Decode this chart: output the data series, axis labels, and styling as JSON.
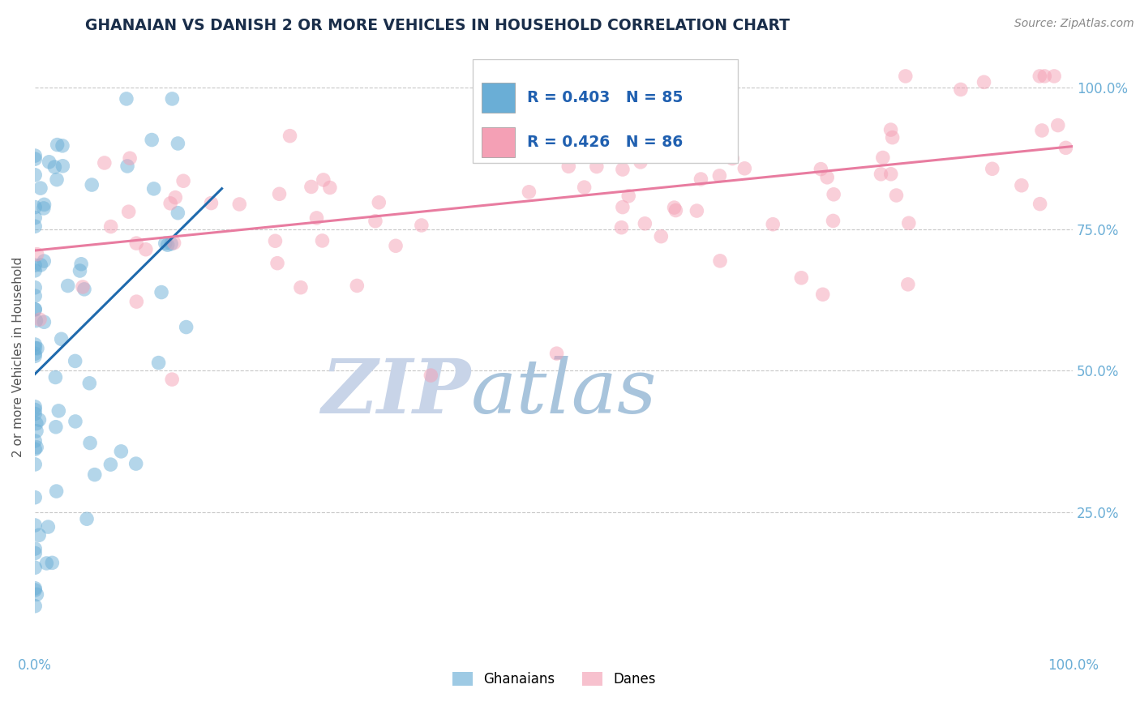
{
  "title": "GHANAIAN VS DANISH 2 OR MORE VEHICLES IN HOUSEHOLD CORRELATION CHART",
  "source": "Source: ZipAtlas.com",
  "ylabel": "2 or more Vehicles in Household",
  "xlim": [
    0.0,
    1.0
  ],
  "ylim": [
    0.0,
    1.05
  ],
  "ghanaian_color": "#6aaed6",
  "danish_color": "#f4a0b5",
  "ghanaian_trendline_color": "#1f6aad",
  "danish_trendline_color": "#e87ca0",
  "ghanaian_R": 0.403,
  "danish_R": 0.426,
  "ghanaian_N": 85,
  "danish_N": 86,
  "title_color": "#1a2e4a",
  "tick_label_color": "#6baed6",
  "ylabel_color": "#555555",
  "background_color": "#ffffff",
  "watermark_zip_color": "#c8d4e8",
  "watermark_atlas_color": "#a8c4dc",
  "seed": 17
}
